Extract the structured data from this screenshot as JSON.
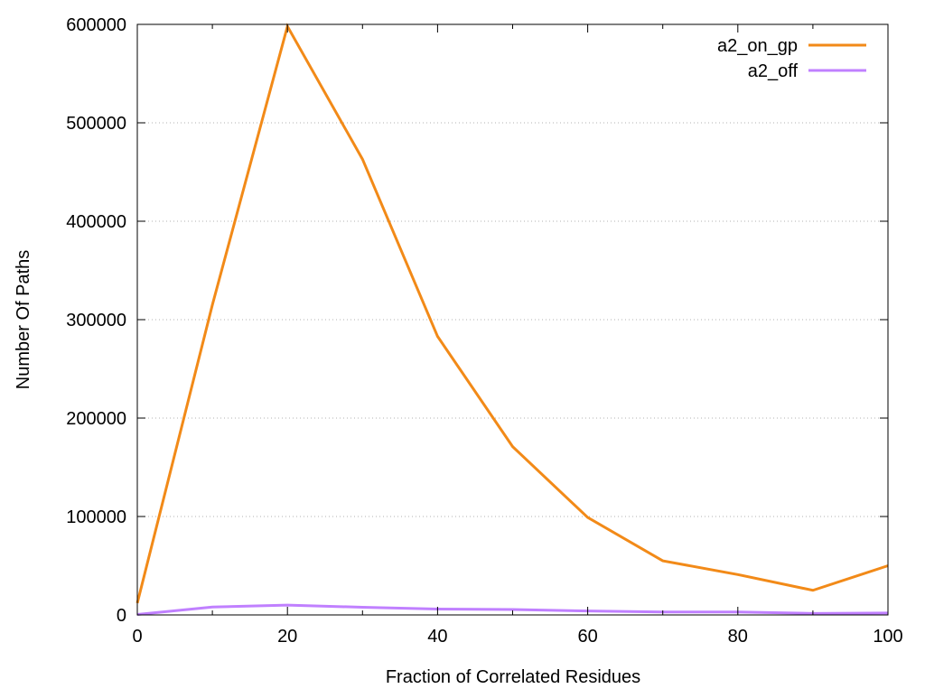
{
  "chart_data": {
    "type": "line",
    "title": "",
    "xlabel": "Fraction of Correlated Residues",
    "ylabel": "Number Of Paths",
    "xlim": [
      0,
      100
    ],
    "ylim": [
      0,
      600000
    ],
    "xticks": [
      0,
      20,
      40,
      60,
      80,
      100
    ],
    "yticks": [
      0,
      100000,
      200000,
      300000,
      400000,
      500000,
      600000
    ],
    "x": [
      0,
      10,
      20,
      30,
      40,
      50,
      60,
      70,
      80,
      90,
      100
    ],
    "grid": "horizontal-dotted",
    "legend_position": "top-right",
    "series": [
      {
        "name": "a2_on_gp",
        "color": "#f28a18",
        "values": [
          12000,
          315000,
          598000,
          463000,
          283000,
          171000,
          99000,
          55000,
          41000,
          25000,
          50000
        ]
      },
      {
        "name": "a2_off",
        "color": "#c080ff",
        "values": [
          500,
          8000,
          10000,
          7800,
          6000,
          5500,
          4000,
          3000,
          3000,
          1500,
          2000
        ]
      }
    ]
  }
}
